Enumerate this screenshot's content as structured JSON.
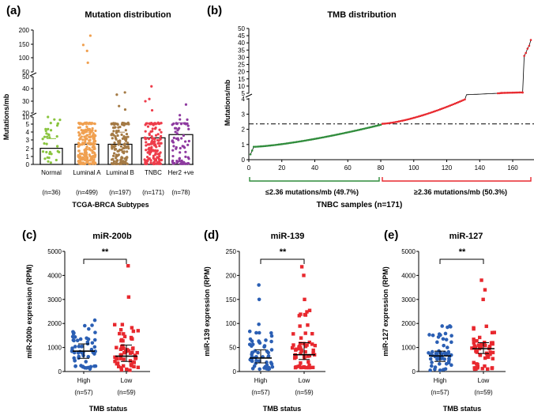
{
  "chart_data": [
    {
      "panel": "(a)",
      "type": "bar",
      "title": "Mutation distribution",
      "xlabel": "TCGA-BRCA Subtypes",
      "ylabel": "Mutations/mb",
      "categories": [
        "Normal",
        "Luminal A",
        "Luminal B",
        "TNBC",
        "Her2 +ve"
      ],
      "counts": [
        "(n=36)",
        "(n=499)",
        "(n=197)",
        "(n=171)",
        "(n=78)"
      ],
      "values": [
        2.0,
        2.5,
        2.5,
        3.3,
        3.7
      ],
      "ymax_points": [
        10,
        180,
        37,
        42,
        27
      ],
      "colors": [
        "#8ac43f",
        "#f0a050",
        "#a47a45",
        "#ee3c4a",
        "#8e3aa0"
      ],
      "y_broken_axis": [
        {
          "ylim": [
            0,
            10
          ],
          "ticks": [
            "0",
            "1",
            "2",
            "3",
            "4",
            "5",
            "10"
          ]
        },
        {
          "ylim": [
            20,
            50
          ],
          "ticks": [
            "20",
            "30",
            "40",
            "50"
          ]
        },
        {
          "ylim": [
            50,
            200
          ],
          "ticks": [
            "50",
            "100",
            "150",
            "200"
          ]
        }
      ]
    },
    {
      "panel": "(b)",
      "type": "scatter",
      "title": "TMB distribution",
      "xlabel": "TNBC samples (n=171)",
      "ylabel": "Mutations/mb",
      "xlim": [
        0,
        171
      ],
      "x_ticks": [
        "0",
        "20",
        "40",
        "60",
        "80",
        "100",
        "120",
        "140",
        "160"
      ],
      "y_broken_axis": [
        {
          "ylim": [
            0,
            4
          ],
          "ticks": [
            "0",
            "1",
            "2",
            "3",
            "4"
          ]
        },
        {
          "ylim": [
            5,
            50
          ],
          "ticks": [
            "5",
            "10",
            "15",
            "20",
            "25",
            "30",
            "35",
            "40",
            "45",
            "50"
          ]
        }
      ],
      "threshold": 2.36,
      "series": [
        {
          "name": "≤2.36 mutations/mb (49.7%)",
          "color": "#2e8b3a",
          "x_range": [
            1,
            80
          ],
          "y_range": [
            0.2,
            2.3
          ]
        },
        {
          "name": "≥2.36 mutations/mb (50.3%)",
          "color": "#e8282e",
          "x_range": [
            81,
            171
          ],
          "y_range": [
            2.4,
            42
          ]
        }
      ],
      "tail_points": [
        {
          "x": 153,
          "y": 5.2
        },
        {
          "x": 166,
          "y": 5.5
        },
        {
          "x": 167,
          "y": 31
        },
        {
          "x": 168,
          "y": 33
        },
        {
          "x": 169,
          "y": 36
        },
        {
          "x": 170,
          "y": 38
        },
        {
          "x": 171,
          "y": 42
        }
      ]
    },
    {
      "panel": "(c)",
      "type": "scatter",
      "title": "miR-200b",
      "ylabel": "miR-200b expression (RPM)",
      "xlabel": "TMB status",
      "ylim": [
        0,
        5000
      ],
      "y_ticks": [
        "0",
        "1000",
        "2000",
        "3000",
        "4000",
        "5000"
      ],
      "groups": [
        {
          "name": "High",
          "n": "(n=57)",
          "color": "#2b5fb4",
          "median": 850,
          "iqr": [
            550,
            1150
          ],
          "spread": [
            100,
            2150
          ]
        },
        {
          "name": "Low",
          "n": "(n=59)",
          "color": "#e8282e",
          "median": 640,
          "iqr": [
            420,
            1100
          ],
          "spread": [
            50,
            2000
          ],
          "outliers": [
            3100,
            4400
          ]
        }
      ],
      "significance": "**"
    },
    {
      "panel": "(d)",
      "type": "scatter",
      "title": "miR-139",
      "ylabel": "miR-139 expression (RPM)",
      "xlabel": "TMB status",
      "ylim": [
        0,
        250
      ],
      "y_ticks": [
        "0",
        "50",
        "100",
        "150",
        "200",
        "250"
      ],
      "groups": [
        {
          "name": "High",
          "n": "(n=57)",
          "color": "#2b5fb4",
          "median": 28,
          "iqr": [
            18,
            45
          ],
          "spread": [
            5,
            100
          ],
          "outliers": [
            150,
            180
          ]
        },
        {
          "name": "Low",
          "n": "(n=59)",
          "color": "#e8282e",
          "median": 35,
          "iqr": [
            25,
            60
          ],
          "spread": [
            8,
            130
          ],
          "outliers": [
            150,
            200,
            218
          ]
        }
      ],
      "significance": "**"
    },
    {
      "panel": "(e)",
      "type": "scatter",
      "title": "miR-127",
      "ylabel": "miR-127 expression (RPM)",
      "xlabel": "TMB status",
      "ylim": [
        0,
        5000
      ],
      "y_ticks": [
        "0",
        "1000",
        "2000",
        "3000",
        "4000",
        "5000"
      ],
      "groups": [
        {
          "name": "High",
          "n": "(n=57)",
          "color": "#2b5fb4",
          "median": 650,
          "iqr": [
            420,
            850
          ],
          "spread": [
            50,
            2100
          ]
        },
        {
          "name": "Low",
          "n": "(n=59)",
          "color": "#e8282e",
          "median": 950,
          "iqr": [
            750,
            1200
          ],
          "spread": [
            100,
            2200
          ],
          "outliers": [
            3000,
            3400,
            3800
          ]
        }
      ],
      "significance": "**"
    }
  ]
}
